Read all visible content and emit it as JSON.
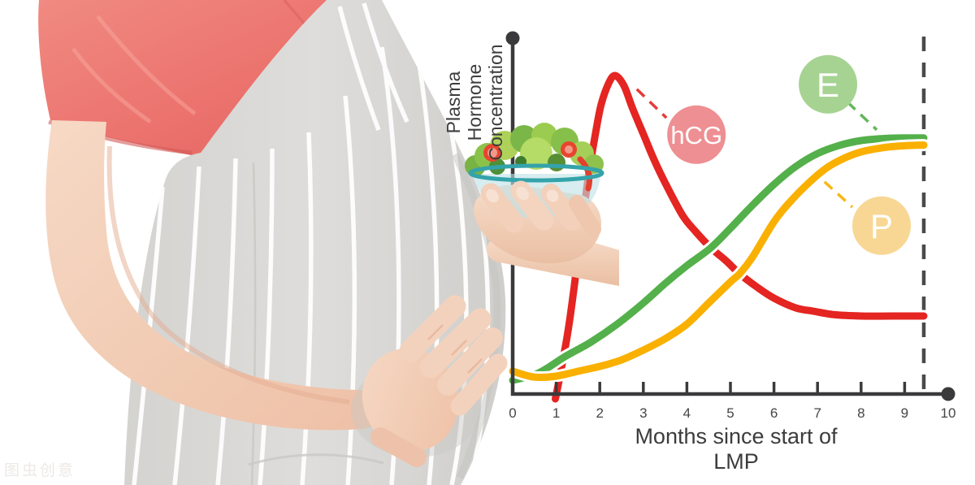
{
  "watermark": "图虫创意",
  "chart_data": {
    "type": "line",
    "title": "",
    "xlabel": "Months since start of LMP",
    "ylabel": [
      "Plasma",
      "Hormone",
      "Concentration"
    ],
    "x_ticks": [
      0,
      1,
      2,
      3,
      4,
      5,
      6,
      7,
      8,
      9,
      10
    ],
    "xlim": [
      0,
      10
    ],
    "ylim": [
      0,
      110
    ],
    "grid": false,
    "legend_position": "inline-callouts",
    "axis_color": "#3a3a3c",
    "tick_label_color": "#454547",
    "guide_line": {
      "x": 9.44,
      "style": "dashed",
      "color": "#4a4a4c"
    },
    "series": [
      {
        "name": "hCG",
        "color": "#e42522",
        "label_circle": {
          "x": 4.22,
          "y": 79.8,
          "fill": "#ee8f93",
          "text_color": "#ffffff"
        },
        "connector": {
          "x1": 2.85,
          "y1": 93.8,
          "x2": 3.53,
          "y2": 85.0
        },
        "points": [
          [
            0.98,
            -1.5
          ],
          [
            1.12,
            8
          ],
          [
            1.29,
            21
          ],
          [
            1.47,
            39
          ],
          [
            1.62,
            55
          ],
          [
            1.75,
            68
          ],
          [
            1.9,
            80
          ],
          [
            2.03,
            89
          ],
          [
            2.2,
            95.5
          ],
          [
            2.35,
            98
          ],
          [
            2.55,
            95
          ],
          [
            2.75,
            88
          ],
          [
            3.0,
            80
          ],
          [
            3.25,
            72
          ],
          [
            3.5,
            65
          ],
          [
            3.9,
            55
          ],
          [
            4.2,
            50
          ],
          [
            4.55,
            45
          ],
          [
            4.9,
            41
          ],
          [
            5.21,
            37
          ],
          [
            5.6,
            33
          ],
          [
            6.0,
            29.5
          ],
          [
            6.5,
            26.5
          ],
          [
            6.9,
            25.5
          ],
          [
            7.4,
            24.4
          ],
          [
            8.0,
            24
          ],
          [
            8.7,
            24
          ],
          [
            9.44,
            24
          ]
        ]
      },
      {
        "name": "E",
        "color": "#54b04a",
        "label_circle": {
          "x": 7.24,
          "y": 95.3,
          "fill": "#a6d392",
          "text_color": "#ffffff"
        },
        "connector": {
          "x1": 7.69,
          "y1": 89.8,
          "x2": 8.36,
          "y2": 81.3
        },
        "points": [
          [
            0,
            4.2
          ],
          [
            0.6,
            6.5
          ],
          [
            1.2,
            11.5
          ],
          [
            1.8,
            16
          ],
          [
            2.4,
            21.5
          ],
          [
            3.0,
            28
          ],
          [
            3.5,
            34
          ],
          [
            4.0,
            39.5
          ],
          [
            4.55,
            45
          ],
          [
            5.0,
            51
          ],
          [
            5.5,
            58
          ],
          [
            6.0,
            64.5
          ],
          [
            6.5,
            70
          ],
          [
            7.0,
            74
          ],
          [
            7.5,
            76.5
          ],
          [
            8.0,
            78
          ],
          [
            8.5,
            78.6
          ],
          [
            9.0,
            78.8
          ],
          [
            9.44,
            78.8
          ]
        ]
      },
      {
        "name": "P",
        "color": "#f9b000",
        "label_circle": {
          "x": 8.47,
          "y": 51.8,
          "fill": "#f8d794",
          "text_color": "#ffffff"
        },
        "connector": {
          "x1": 7.16,
          "y1": 65.3,
          "x2": 7.8,
          "y2": 57.5
        },
        "points": [
          [
            0,
            7
          ],
          [
            0.5,
            5.2
          ],
          [
            1.0,
            5.5
          ],
          [
            1.5,
            7
          ],
          [
            2.0,
            8.5
          ],
          [
            2.5,
            10.5
          ],
          [
            3.0,
            13.5
          ],
          [
            3.5,
            17
          ],
          [
            4.0,
            21.5
          ],
          [
            4.5,
            28
          ],
          [
            5.0,
            34.5
          ],
          [
            5.21,
            37
          ],
          [
            5.5,
            42
          ],
          [
            6.0,
            53
          ],
          [
            6.36,
            59
          ],
          [
            6.8,
            65
          ],
          [
            7.2,
            69.5
          ],
          [
            7.6,
            72.5
          ],
          [
            8.0,
            74.5
          ],
          [
            8.5,
            75.8
          ],
          [
            9.0,
            76.4
          ],
          [
            9.44,
            76.6
          ]
        ]
      }
    ]
  }
}
